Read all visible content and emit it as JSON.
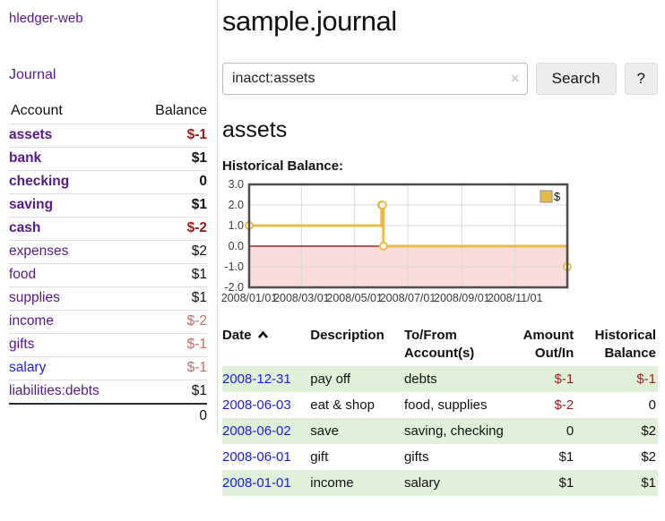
{
  "sidebar": {
    "brand": "hledger-web",
    "nav_journal": "Journal",
    "accounts_header": {
      "account": "Account",
      "balance": "Balance"
    },
    "accounts": [
      {
        "name": "assets",
        "balance": "$-1"
      },
      {
        "name": "bank",
        "balance": "$1"
      },
      {
        "name": "checking",
        "balance": "0"
      },
      {
        "name": "saving",
        "balance": "$1"
      },
      {
        "name": "cash",
        "balance": "$-2"
      },
      {
        "name": "expenses",
        "balance": "$2"
      },
      {
        "name": "food",
        "balance": "$1"
      },
      {
        "name": "supplies",
        "balance": "$1"
      },
      {
        "name": "income",
        "balance": "$-2"
      },
      {
        "name": "gifts",
        "balance": "$-1"
      },
      {
        "name": "salary",
        "balance": "$-1"
      },
      {
        "name": "liabilities:debts",
        "balance": "$1"
      }
    ],
    "total": "0"
  },
  "header": {
    "title": "sample.journal"
  },
  "search": {
    "value": "inacct:assets",
    "clear_icon": "×",
    "search_label": "Search",
    "help_label": "?"
  },
  "account_page": {
    "heading": "assets",
    "chart_label": "Historical Balance:"
  },
  "chart_data": {
    "type": "line",
    "title": "Historical Balance",
    "step": true,
    "legend": [
      "$"
    ],
    "ylim": [
      -2,
      3
    ],
    "y_ticks": [
      3.0,
      2.0,
      1.0,
      0.0,
      -1.0,
      -2.0
    ],
    "y_tick_labels": [
      "3.0",
      "2.0",
      "1.0",
      "0.0",
      "-1.0",
      "-2.0"
    ],
    "x_domain_days": [
      0,
      365
    ],
    "x_ticks": [
      {
        "day": 0,
        "label": "2008/01/01"
      },
      {
        "day": 60,
        "label": "2008/03/01"
      },
      {
        "day": 121,
        "label": "2008/05/01"
      },
      {
        "day": 182,
        "label": "2008/07/01"
      },
      {
        "day": 244,
        "label": "2008/09/01"
      },
      {
        "day": 305,
        "label": "2008/11/01"
      }
    ],
    "series": [
      {
        "name": "$",
        "points": [
          {
            "date": "2008-01-01",
            "day": 0,
            "value": 1
          },
          {
            "date": "2008-06-01",
            "day": 152,
            "value": 2
          },
          {
            "date": "2008-06-02",
            "day": 153,
            "value": 2
          },
          {
            "date": "2008-06-03",
            "day": 154,
            "value": 0
          },
          {
            "date": "2008-12-31",
            "day": 365,
            "value": -1
          }
        ]
      }
    ],
    "negative_region_shaded": true,
    "colors": {
      "line": "#e5bc49",
      "marker_fill": "#ffffff",
      "negative_fill": "#fbdcdc",
      "zero_line": "#8b0000",
      "grid": "#d9d9d9",
      "border": "#4d4d4d",
      "axis_text": "#3a3a3a"
    }
  },
  "register": {
    "columns": {
      "date": "Date",
      "description": "Description",
      "tofrom": "To/From Account(s)",
      "amount": "Amount Out/In",
      "balance": "Historical Balance"
    },
    "rows": [
      {
        "date": "2008-12-31",
        "description": "pay off",
        "accounts": "debts",
        "amount": "$-1",
        "balance": "$-1"
      },
      {
        "date": "2008-06-03",
        "description": "eat & shop",
        "accounts": "food, supplies",
        "amount": "$-2",
        "balance": "0"
      },
      {
        "date": "2008-06-02",
        "description": "save",
        "accounts": "saving, checking",
        "amount": "0",
        "balance": "$2"
      },
      {
        "date": "2008-06-01",
        "description": "gift",
        "accounts": "gifts",
        "amount": "$1",
        "balance": "$2"
      },
      {
        "date": "2008-01-01",
        "description": "income",
        "accounts": "salary",
        "amount": "$1",
        "balance": "$1"
      }
    ]
  },
  "colors": {
    "link_purple": "#551a8b",
    "link_blue": "#1a1aee",
    "negative_red": "#9d1b1b",
    "negative_light_red": "#c0706d",
    "row_stripe_green": "#e0f0d9"
  }
}
